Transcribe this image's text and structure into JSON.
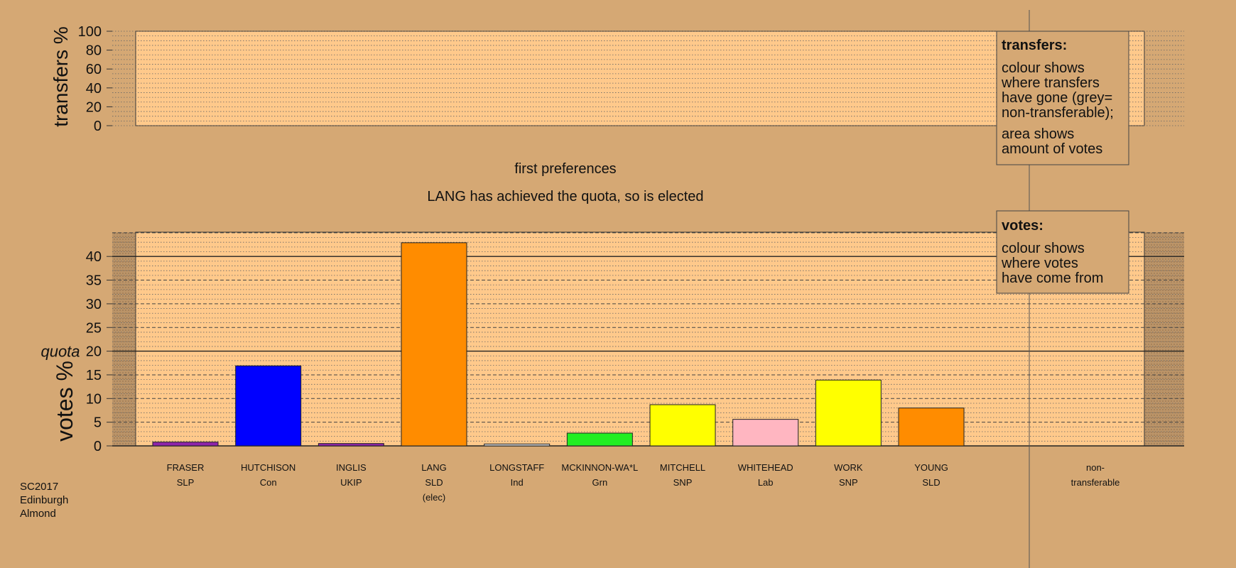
{
  "transfers_panel": {
    "ylabel": "transfers %",
    "ticks": [
      0,
      20,
      40,
      60,
      80,
      100
    ]
  },
  "stage": {
    "title": "first preferences",
    "message": "LANG has achieved the quota, so is elected"
  },
  "legend_transfers": {
    "heading": "transfers:",
    "lines1": [
      "colour shows",
      "where transfers",
      "have gone (grey=",
      "non-transferable);"
    ],
    "lines2": [
      "area shows",
      "amount of votes"
    ]
  },
  "legend_votes": {
    "heading": "votes:",
    "lines1": [
      "colour shows",
      "where votes",
      "have come from"
    ]
  },
  "footer": {
    "lines": [
      "SC2017",
      "Edinburgh",
      "Almond"
    ]
  },
  "non_transferable": {
    "line1": "non-",
    "line2": "transferable"
  },
  "chart_data": {
    "type": "bar",
    "ylabel": "votes %",
    "quota_label": "quota",
    "quota": 20,
    "ylim": [
      0,
      45
    ],
    "yticks": [
      0,
      5,
      10,
      15,
      20,
      25,
      30,
      35,
      40
    ],
    "candidates": [
      {
        "name": "FRASER",
        "party": "SLP",
        "note": "",
        "value": 0.8,
        "color": "#8e24aa"
      },
      {
        "name": "HUTCHISON",
        "party": "Con",
        "note": "",
        "value": 16.9,
        "color": "#0000ff"
      },
      {
        "name": "INGLIS",
        "party": "UKIP",
        "note": "",
        "value": 0.5,
        "color": "#8e24aa"
      },
      {
        "name": "LANG",
        "party": "SLD",
        "note": "(elec)",
        "value": 42.9,
        "color": "#ff8c00"
      },
      {
        "name": "LONGSTAFF",
        "party": "Ind",
        "note": "",
        "value": 0.4,
        "color": "#dcdcdc"
      },
      {
        "name": "MCKINNON-WA*L",
        "party": "Grn",
        "note": "",
        "value": 2.7,
        "color": "#22ee22"
      },
      {
        "name": "MITCHELL",
        "party": "SNP",
        "note": "",
        "value": 8.7,
        "color": "#ffff00"
      },
      {
        "name": "WHITEHEAD",
        "party": "Lab",
        "note": "",
        "value": 5.6,
        "color": "#ffb6c1"
      },
      {
        "name": "WORK",
        "party": "SNP",
        "note": "",
        "value": 13.9,
        "color": "#ffff00"
      },
      {
        "name": "YOUNG",
        "party": "SLD",
        "note": "",
        "value": 8.0,
        "color": "#ff8c00"
      }
    ]
  }
}
